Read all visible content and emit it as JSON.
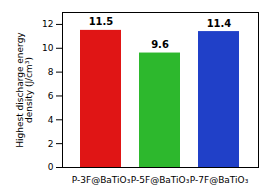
{
  "chart_data": {
    "type": "bar",
    "categories": [
      "P-3F@BaTiO₃",
      "P-5F@BaTiO₃",
      "P-7F@BaTiO₃"
    ],
    "values": [
      11.5,
      9.6,
      11.4
    ],
    "colors": [
      "#e01515",
      "#2db82d",
      "#2040c8"
    ],
    "ylabel": "Highest discharge energy\ndensity (J/cm³)",
    "ylim": [
      0,
      13
    ],
    "yticks": [
      0,
      2,
      4,
      6,
      8,
      10,
      12
    ],
    "grid": false,
    "data_labels": true
  }
}
